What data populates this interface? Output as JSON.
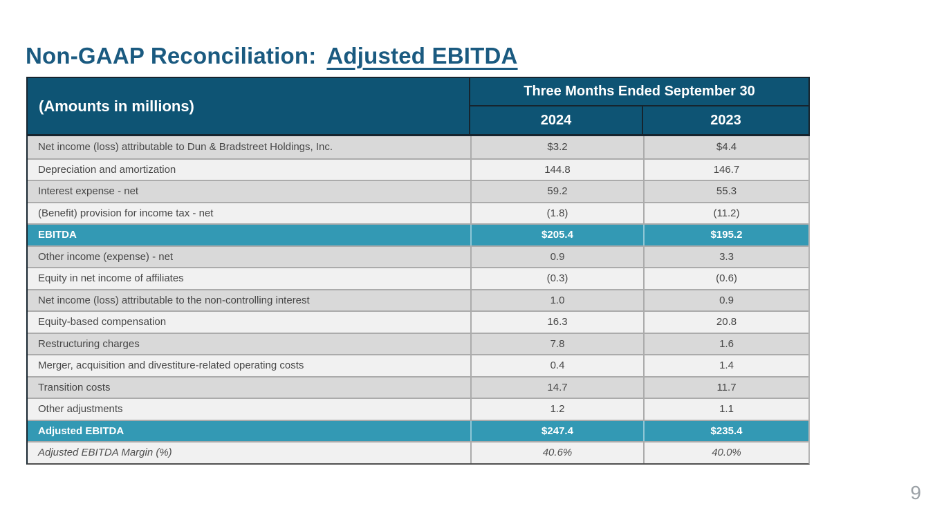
{
  "page": {
    "title_prefix": "Non-GAAP Reconciliation:",
    "title_emphasis": "Adjusted EBITDA",
    "page_number": "9"
  },
  "colors": {
    "header_bg": "#0E5474",
    "accent_row_bg": "#3399B4",
    "title": "#1A5A80",
    "row_dark": "#D9D9D9",
    "row_light": "#F1F1F1"
  },
  "table": {
    "corner_label": "(Amounts in millions)",
    "period_header": "Three Months Ended September 30",
    "col_2024": "2024",
    "col_2023": "2023",
    "rows": [
      {
        "label": "Net income (loss) attributable to Dun & Bradstreet Holdings, Inc.",
        "y2024": "$3.2",
        "y2023": "$4.4",
        "variant": "dark"
      },
      {
        "label": "Depreciation and amortization",
        "y2024": "144.8",
        "y2023": "146.7",
        "variant": "light"
      },
      {
        "label": "Interest expense - net",
        "y2024": "59.2",
        "y2023": "55.3",
        "variant": "dark"
      },
      {
        "label": "(Benefit) provision for income tax - net",
        "y2024": "(1.8)",
        "y2023": "(11.2)",
        "variant": "light"
      },
      {
        "label": "EBITDA",
        "y2024": "$205.4",
        "y2023": "$195.2",
        "variant": "total"
      },
      {
        "label": "Other income (expense) - net",
        "y2024": "0.9",
        "y2023": "3.3",
        "variant": "dark"
      },
      {
        "label": "Equity in net income of affiliates",
        "y2024": "(0.3)",
        "y2023": "(0.6)",
        "variant": "light"
      },
      {
        "label": "Net income (loss) attributable to the non-controlling interest",
        "y2024": "1.0",
        "y2023": "0.9",
        "variant": "dark"
      },
      {
        "label": "Equity-based compensation",
        "y2024": "16.3",
        "y2023": "20.8",
        "variant": "light"
      },
      {
        "label": "Restructuring charges",
        "y2024": "7.8",
        "y2023": "1.6",
        "variant": "dark"
      },
      {
        "label": "Merger, acquisition and divestiture-related operating costs",
        "y2024": "0.4",
        "y2023": "1.4",
        "variant": "light"
      },
      {
        "label": "Transition costs",
        "y2024": "14.7",
        "y2023": "11.7",
        "variant": "dark"
      },
      {
        "label": "Other adjustments",
        "y2024": "1.2",
        "y2023": "1.1",
        "variant": "light"
      },
      {
        "label": "Adjusted EBITDA",
        "y2024": "$247.4",
        "y2023": "$235.4",
        "variant": "total"
      },
      {
        "label": "Adjusted EBITDA Margin (%)",
        "y2024": "40.6%",
        "y2023": "40.0%",
        "variant": "margin"
      }
    ]
  }
}
